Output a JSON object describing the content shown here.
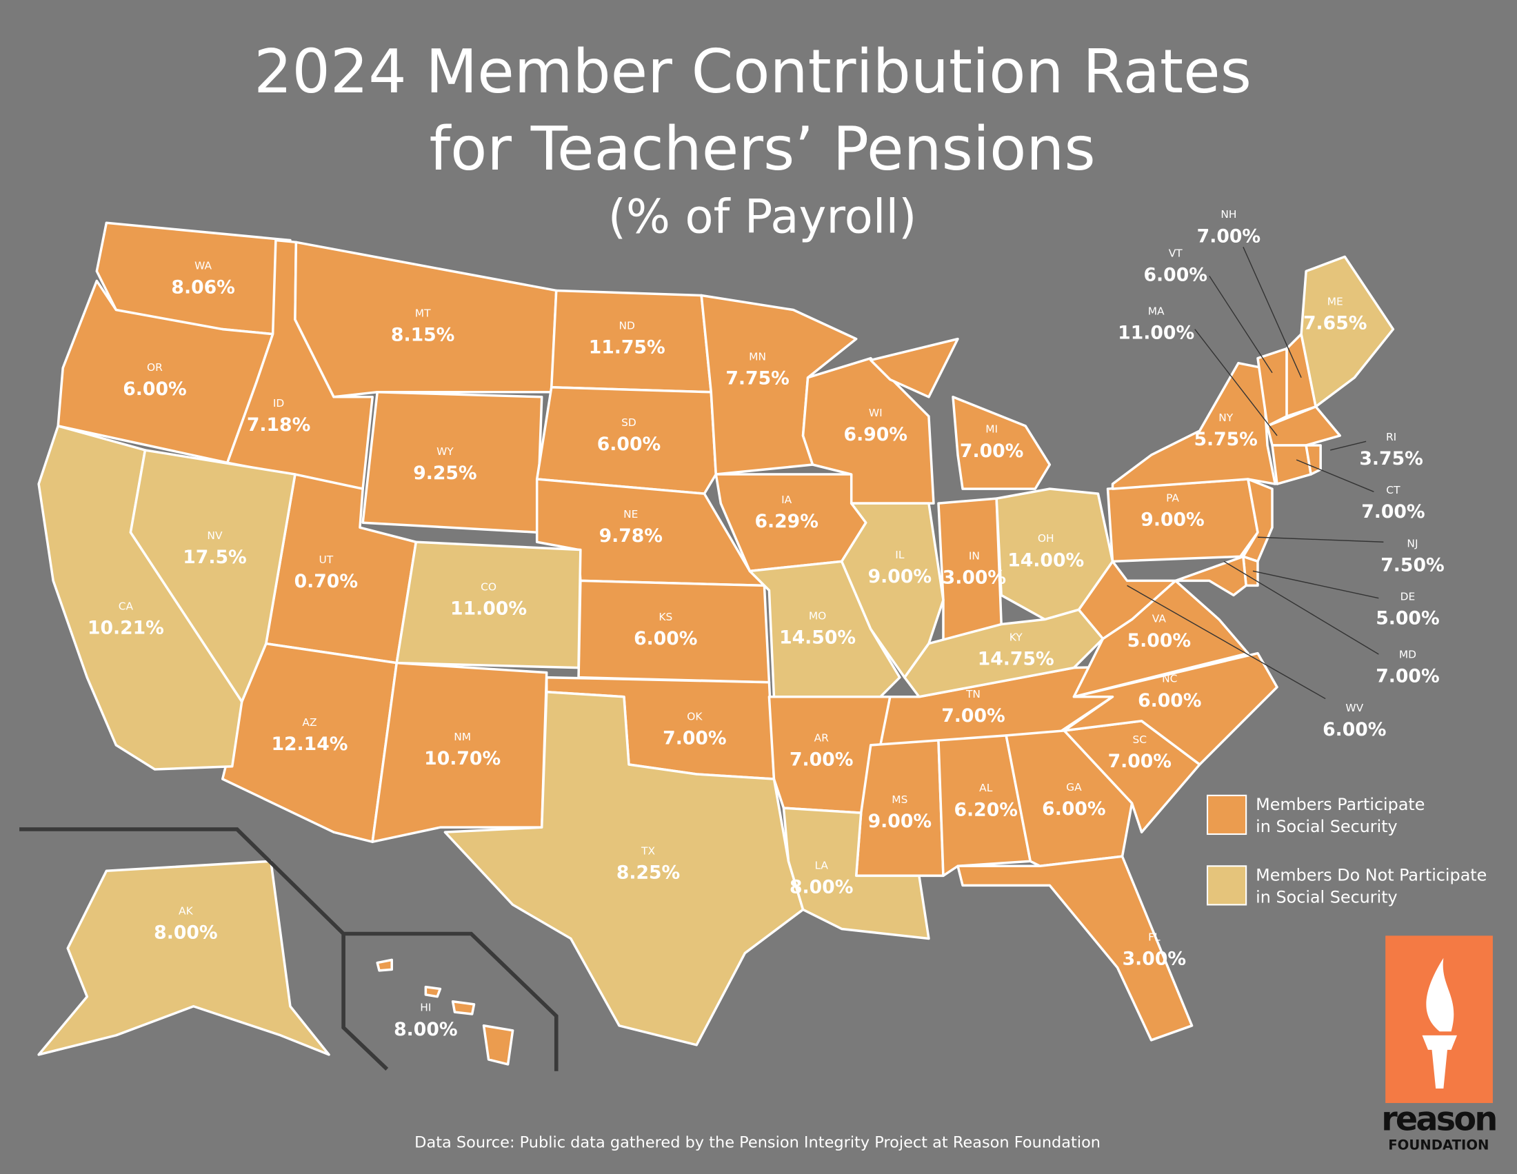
{
  "header": {
    "title": [
      "2024 Member Contribution Rates",
      "for Teachers’ Pensions",
      "(% of Payroll)"
    ]
  },
  "groups": [
    {
      "label": [
        "Members Participate",
        "in Social Security"
      ],
      "color": "#eb9c4f",
      "states": [
        {
          "abbr": "WA",
          "rate": "8.06%"
        },
        {
          "abbr": "OR",
          "rate": "6.00%"
        },
        {
          "abbr": "ID",
          "rate": "7.18%"
        },
        {
          "abbr": "MT",
          "rate": "8.15%"
        },
        {
          "abbr": "WY",
          "rate": "9.25%"
        },
        {
          "abbr": "UT",
          "rate": "0.70%"
        },
        {
          "abbr": "AZ",
          "rate": "12.14%"
        },
        {
          "abbr": "NM",
          "rate": "10.70%"
        },
        {
          "abbr": "ND",
          "rate": "11.75%"
        },
        {
          "abbr": "SD",
          "rate": "6.00%"
        },
        {
          "abbr": "NE",
          "rate": "9.78%"
        },
        {
          "abbr": "KS",
          "rate": "6.00%"
        },
        {
          "abbr": "OK",
          "rate": "7.00%"
        },
        {
          "abbr": "MN",
          "rate": "7.75%"
        },
        {
          "abbr": "IA",
          "rate": "6.29%"
        },
        {
          "abbr": "AR",
          "rate": "7.00%"
        },
        {
          "abbr": "WI",
          "rate": "6.90%"
        },
        {
          "abbr": "MI",
          "rate": "7.00%"
        },
        {
          "abbr": "IN",
          "rate": "3.00%"
        },
        {
          "abbr": "TN",
          "rate": "7.00%"
        },
        {
          "abbr": "MS",
          "rate": "9.00%"
        },
        {
          "abbr": "AL",
          "rate": "6.20%"
        },
        {
          "abbr": "GA",
          "rate": "6.00%"
        },
        {
          "abbr": "FL",
          "rate": "3.00%"
        },
        {
          "abbr": "SC",
          "rate": "7.00%"
        },
        {
          "abbr": "NC",
          "rate": "6.00%"
        },
        {
          "abbr": "VA",
          "rate": "5.00%"
        },
        {
          "abbr": "WV",
          "rate": "6.00%"
        },
        {
          "abbr": "PA",
          "rate": "9.00%"
        },
        {
          "abbr": "NY",
          "rate": "5.75%"
        },
        {
          "abbr": "NJ",
          "rate": "7.50%"
        },
        {
          "abbr": "DE",
          "rate": "5.00%"
        },
        {
          "abbr": "MD",
          "rate": "7.00%"
        },
        {
          "abbr": "VT",
          "rate": "6.00%"
        },
        {
          "abbr": "NH",
          "rate": "7.00%"
        },
        {
          "abbr": "MA",
          "rate": "11.00%"
        },
        {
          "abbr": "CT",
          "rate": "7.00%"
        },
        {
          "abbr": "RI",
          "rate": "3.75%"
        },
        {
          "abbr": "HI",
          "rate": "8.00%"
        }
      ]
    },
    {
      "label": [
        "Members Do Not Participate",
        "in Social Security"
      ],
      "color": "#e5c47b",
      "states": [
        {
          "abbr": "CA",
          "rate": "10.21%"
        },
        {
          "abbr": "NV",
          "rate": "17.5%"
        },
        {
          "abbr": "CO",
          "rate": "11.00%"
        },
        {
          "abbr": "TX",
          "rate": "8.25%"
        },
        {
          "abbr": "MO",
          "rate": "14.50%"
        },
        {
          "abbr": "LA",
          "rate": "8.00%"
        },
        {
          "abbr": "IL",
          "rate": "9.00%"
        },
        {
          "abbr": "OH",
          "rate": "14.00%"
        },
        {
          "abbr": "KY",
          "rate": "14.75%"
        },
        {
          "abbr": "ME",
          "rate": "7.65%"
        },
        {
          "abbr": "AK",
          "rate": "8.00%"
        }
      ]
    }
  ],
  "source": "Data Source: Public data gathered by the Pension Integrity Project at Reason Foundation",
  "logo": {
    "name": "reason",
    "subtitle": "FOUNDATION"
  }
}
